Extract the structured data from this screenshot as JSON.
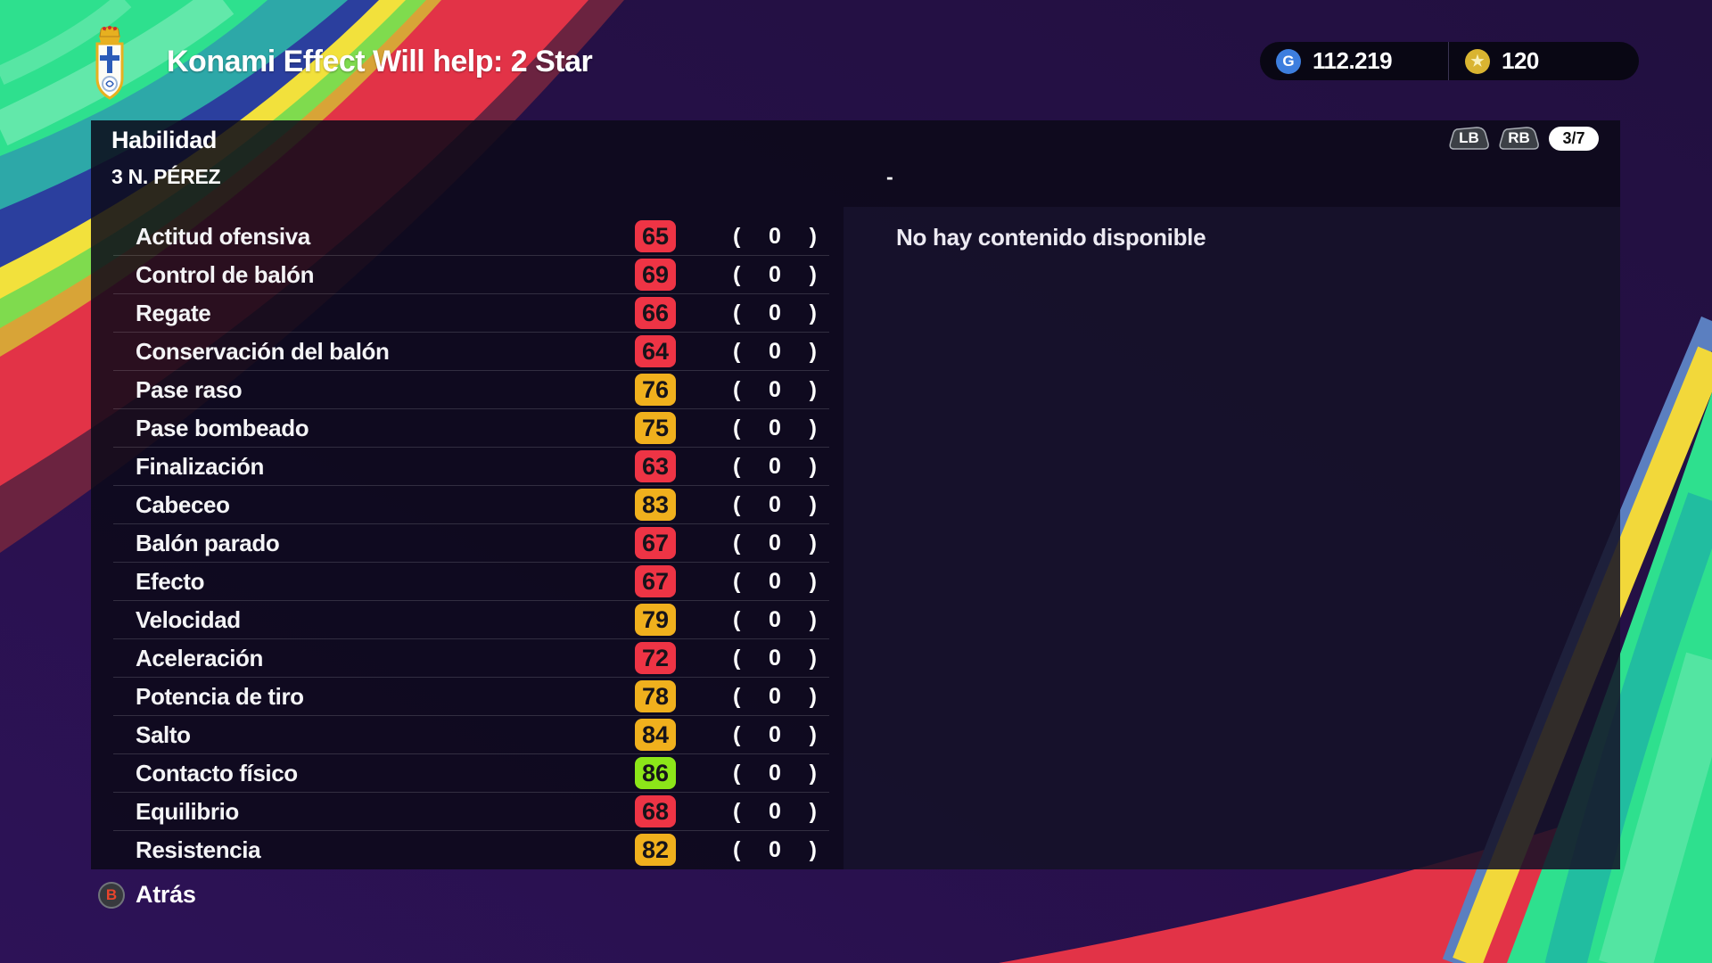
{
  "top_bar": {
    "title": "Konami Effect Will help: 2 Star",
    "gp": {
      "icon_letter": "G",
      "value": "112.219"
    },
    "coins": {
      "icon": "star",
      "value": "120"
    }
  },
  "panel": {
    "title": "Habilidad",
    "player": "3 N. PÉREZ",
    "compare_player": "-",
    "nav": {
      "lb": "LB",
      "rb": "RB",
      "page": "3/7"
    },
    "delta_open": "(",
    "delta_close": ")",
    "empty_message": "No hay contenido disponible"
  },
  "stats": [
    {
      "label": "Actitud ofensiva",
      "value": "65",
      "tier": "low",
      "delta": "0"
    },
    {
      "label": "Control de balón",
      "value": "69",
      "tier": "low",
      "delta": "0"
    },
    {
      "label": "Regate",
      "value": "66",
      "tier": "low",
      "delta": "0"
    },
    {
      "label": "Conservación del balón",
      "value": "64",
      "tier": "low",
      "delta": "0"
    },
    {
      "label": "Pase raso",
      "value": "76",
      "tier": "mid",
      "delta": "0"
    },
    {
      "label": "Pase bombeado",
      "value": "75",
      "tier": "mid",
      "delta": "0"
    },
    {
      "label": "Finalización",
      "value": "63",
      "tier": "low",
      "delta": "0"
    },
    {
      "label": "Cabeceo",
      "value": "83",
      "tier": "mid",
      "delta": "0"
    },
    {
      "label": "Balón parado",
      "value": "67",
      "tier": "low",
      "delta": "0"
    },
    {
      "label": "Efecto",
      "value": "67",
      "tier": "low",
      "delta": "0"
    },
    {
      "label": "Velocidad",
      "value": "79",
      "tier": "mid",
      "delta": "0"
    },
    {
      "label": "Aceleración",
      "value": "72",
      "tier": "low",
      "delta": "0"
    },
    {
      "label": "Potencia de tiro",
      "value": "78",
      "tier": "mid",
      "delta": "0"
    },
    {
      "label": "Salto",
      "value": "84",
      "tier": "mid",
      "delta": "0"
    },
    {
      "label": "Contacto físico",
      "value": "86",
      "tier": "high",
      "delta": "0"
    },
    {
      "label": "Equilibrio",
      "value": "68",
      "tier": "low",
      "delta": "0"
    },
    {
      "label": "Resistencia",
      "value": "82",
      "tier": "mid",
      "delta": "0"
    }
  ],
  "footer": {
    "button": "B",
    "label": "Atrás"
  },
  "colors": {
    "low": "#ee3445",
    "mid": "#f0b01d",
    "high": "#8ce619"
  }
}
